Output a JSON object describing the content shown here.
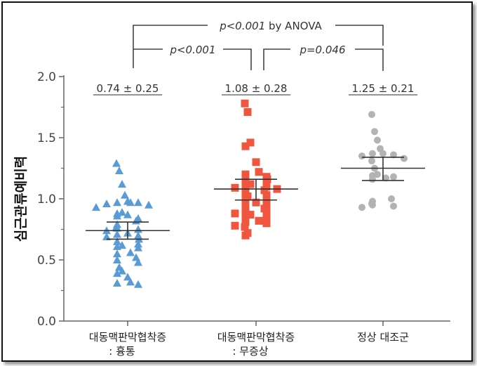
{
  "chart_data": {
    "type": "scatter",
    "ylabel": "심근관류예비력",
    "ylim": [
      0.0,
      2.0
    ],
    "yticks": [
      "0.0",
      "0.5",
      "1.0",
      "1.5",
      "2.0"
    ],
    "categories": [
      [
        "대동맥판막협착증",
        ": 흉통"
      ],
      [
        "대동맥판막협착증",
        ": 무증상"
      ],
      [
        "정상 대조군"
      ]
    ],
    "groups": [
      {
        "marker": "triangle",
        "color": "#5B9BD5",
        "summary_label": "0.74 ± 0.25",
        "mean": 0.74,
        "sd_low": 0.67,
        "sd_high": 0.81,
        "values": [
          1.29,
          1.23,
          1.12,
          1.03,
          0.98,
          0.97,
          0.97,
          0.97,
          0.96,
          0.95,
          0.93,
          0.89,
          0.88,
          0.87,
          0.86,
          0.84,
          0.82,
          0.79,
          0.77,
          0.76,
          0.75,
          0.74,
          0.72,
          0.71,
          0.7,
          0.69,
          0.67,
          0.65,
          0.63,
          0.62,
          0.61,
          0.6,
          0.56,
          0.55,
          0.52,
          0.5,
          0.48,
          0.44,
          0.41,
          0.39,
          0.36,
          0.32,
          0.31,
          0.3
        ]
      },
      {
        "marker": "square",
        "color": "#F0553E",
        "summary_label": "1.08 ± 0.28",
        "mean": 1.08,
        "sd_low": 0.99,
        "sd_high": 1.16,
        "values": [
          1.78,
          1.71,
          1.46,
          1.43,
          1.3,
          1.22,
          1.2,
          1.18,
          1.16,
          1.15,
          1.14,
          1.12,
          1.11,
          1.1,
          1.09,
          1.08,
          1.07,
          1.05,
          1.03,
          1.02,
          1.0,
          0.98,
          0.97,
          0.95,
          0.93,
          0.92,
          0.9,
          0.89,
          0.88,
          0.87,
          0.85,
          0.83,
          0.82,
          0.81,
          0.8,
          0.78,
          0.77,
          0.72,
          0.7
        ]
      },
      {
        "marker": "circle",
        "color": "#B3B3B3",
        "summary_label": "1.25 ± 0.21",
        "mean": 1.25,
        "sd_low": 1.15,
        "sd_high": 1.34,
        "values": [
          1.69,
          1.55,
          1.48,
          1.41,
          1.37,
          1.37,
          1.36,
          1.35,
          1.33,
          1.31,
          1.25,
          1.2,
          1.19,
          1.18,
          1.17,
          1.16,
          1.0,
          0.98,
          0.96,
          0.95,
          0.94,
          0.93
        ]
      }
    ],
    "comparisons": [
      {
        "label_italic": "p<0.001",
        "label_rest": " by ANOVA"
      },
      {
        "label_italic": "p<0.001",
        "label_rest": ""
      },
      {
        "label_italic": "p=0.046",
        "label_rest": ""
      }
    ]
  }
}
